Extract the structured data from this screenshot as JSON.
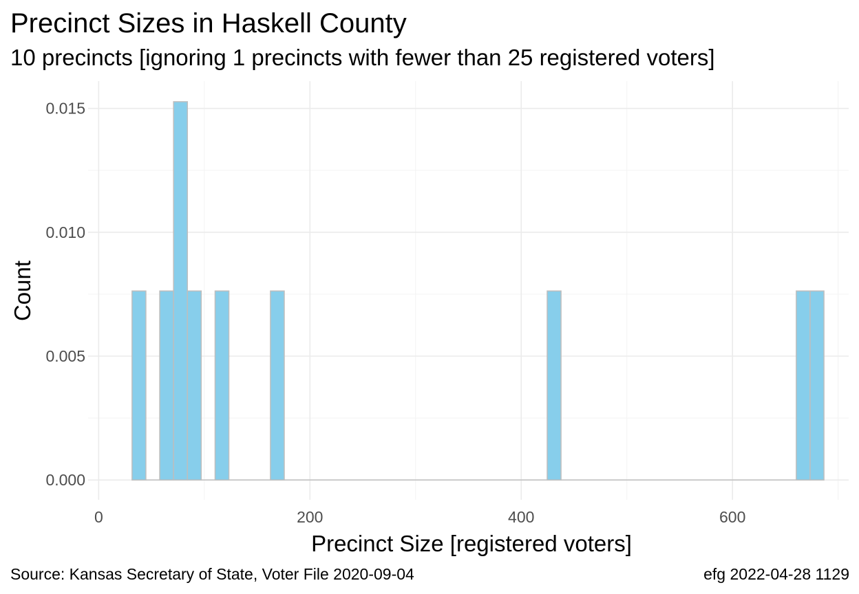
{
  "chart_data": {
    "type": "bar",
    "title": "Precinct Sizes in Haskell County",
    "subtitle": "10 precincts [ignoring 1 precincts with fewer than 25 registered voters]",
    "xlabel": "Precinct Size [registered voters]",
    "ylabel": "Count",
    "xlim": [
      -10,
      710
    ],
    "ylim": [
      -0.0008,
      0.0161
    ],
    "x_ticks": [
      {
        "value": 0,
        "label": "0"
      },
      {
        "value": 200,
        "label": "200"
      },
      {
        "value": 400,
        "label": "400"
      },
      {
        "value": 600,
        "label": "600"
      }
    ],
    "y_ticks": [
      {
        "value": 0.0,
        "label": "0.000"
      },
      {
        "value": 0.005,
        "label": "0.005"
      },
      {
        "value": 0.01,
        "label": "0.010"
      },
      {
        "value": 0.015,
        "label": "0.015"
      }
    ],
    "bin_width": 13.1,
    "bins": [
      {
        "x_start": 31.6,
        "value": 0.00763
      },
      {
        "x_start": 57.8,
        "value": 0.00763
      },
      {
        "x_start": 70.9,
        "value": 0.01527
      },
      {
        "x_start": 84.0,
        "value": 0.00763
      },
      {
        "x_start": 110.2,
        "value": 0.00763
      },
      {
        "x_start": 162.6,
        "value": 0.00763
      },
      {
        "x_start": 424.6,
        "value": 0.00763
      },
      {
        "x_start": 660.4,
        "value": 0.00763
      },
      {
        "x_start": 673.5,
        "value": 0.00763
      }
    ],
    "bar_color": "#87ceeb",
    "bar_outline": "#bebebe",
    "grid": true,
    "legend": "none"
  },
  "caption": {
    "source": "Source:  Kansas Secretary of State, Voter File  2020-09-04",
    "credit": "efg 2022-04-28 1129"
  }
}
